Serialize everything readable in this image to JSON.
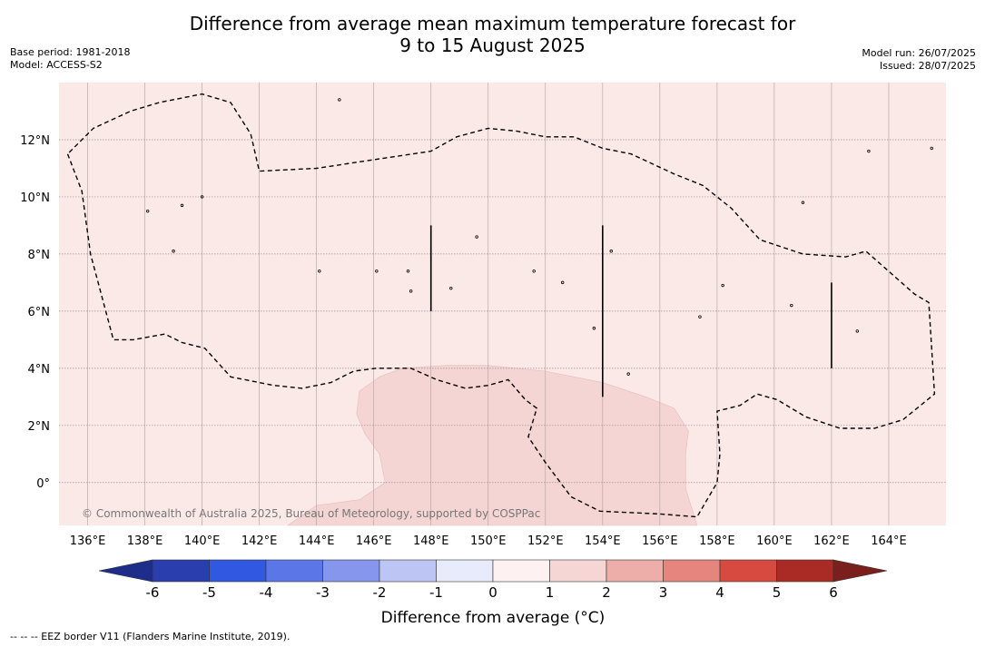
{
  "header": {
    "title_line1": "Difference from average mean maximum temperature forecast for",
    "title_line2": "9 to 15 August 2025",
    "base_period": "Base period: 1981-2018",
    "model": "Model: ACCESS-S2",
    "model_run": "Model run: 26/07/2025",
    "issued": "Issued: 28/07/2025"
  },
  "map": {
    "background_color": "#fbe9e8",
    "lon_range": [
      135,
      166
    ],
    "lat_range": [
      -1.5,
      14
    ],
    "lon_ticks": [
      {
        "value": 136,
        "label": "136°E"
      },
      {
        "value": 138,
        "label": "138°E"
      },
      {
        "value": 140,
        "label": "140°E"
      },
      {
        "value": 142,
        "label": "142°E"
      },
      {
        "value": 144,
        "label": "144°E"
      },
      {
        "value": 146,
        "label": "146°E"
      },
      {
        "value": 148,
        "label": "148°E"
      },
      {
        "value": 150,
        "label": "150°E"
      },
      {
        "value": 152,
        "label": "152°E"
      },
      {
        "value": 154,
        "label": "154°E"
      },
      {
        "value": 156,
        "label": "156°E"
      },
      {
        "value": 158,
        "label": "158°E"
      },
      {
        "value": 160,
        "label": "160°E"
      },
      {
        "value": 162,
        "label": "162°E"
      },
      {
        "value": 164,
        "label": "164°E"
      }
    ],
    "lat_ticks": [
      {
        "value": 12,
        "label": "12°N"
      },
      {
        "value": 10,
        "label": "10°N"
      },
      {
        "value": 8,
        "label": "8°N"
      },
      {
        "value": 6,
        "label": "6°N"
      },
      {
        "value": 4,
        "label": "4°N"
      },
      {
        "value": 2,
        "label": "2°N"
      },
      {
        "value": 0,
        "label": "0°"
      }
    ],
    "anomaly_region_1_to_2": {
      "color": "#f4d5d3",
      "lonlat": [
        [
          146.2,
          3.7
        ],
        [
          147.0,
          4.0
        ],
        [
          148.5,
          4.1
        ],
        [
          150.0,
          4.1
        ],
        [
          152.0,
          3.9
        ],
        [
          154.0,
          3.5
        ],
        [
          155.5,
          3.0
        ],
        [
          156.5,
          2.6
        ],
        [
          157.0,
          1.8
        ],
        [
          156.9,
          1.0
        ],
        [
          156.9,
          -0.2
        ],
        [
          157.3,
          -1.5
        ],
        [
          143.0,
          -1.5
        ],
        [
          144.0,
          -0.8
        ],
        [
          145.5,
          -0.6
        ],
        [
          146.4,
          0.0
        ],
        [
          146.2,
          1.0
        ],
        [
          145.7,
          1.7
        ],
        [
          145.4,
          2.4
        ],
        [
          145.5,
          3.2
        ]
      ]
    },
    "eez_border": [
      [
        [
          135.3,
          11.5
        ],
        [
          135.8,
          10.2
        ],
        [
          136.1,
          8.0
        ],
        [
          136.9,
          5.0
        ],
        [
          137.6,
          5.0
        ],
        [
          138.7,
          5.2
        ],
        [
          139.3,
          4.9
        ],
        [
          140.1,
          4.7
        ],
        [
          141.0,
          3.7
        ],
        [
          142.5,
          3.4
        ],
        [
          143.5,
          3.3
        ],
        [
          144.5,
          3.5
        ],
        [
          145.3,
          3.9
        ],
        [
          146.1,
          4.0
        ],
        [
          147.3,
          4.0
        ],
        [
          148.2,
          3.6
        ],
        [
          149.2,
          3.3
        ],
        [
          150.0,
          3.4
        ],
        [
          150.7,
          3.6
        ],
        [
          151.3,
          2.9
        ],
        [
          151.7,
          2.6
        ],
        [
          151.4,
          1.6
        ],
        [
          152.0,
          0.7
        ],
        [
          152.9,
          -0.5
        ],
        [
          153.9,
          -1.0
        ],
        [
          156.0,
          -1.1
        ],
        [
          157.3,
          -1.2
        ],
        [
          158.0,
          0.0
        ],
        [
          158.1,
          1.0
        ],
        [
          158.0,
          2.5
        ],
        [
          158.8,
          2.7
        ],
        [
          159.4,
          3.1
        ],
        [
          160.1,
          2.9
        ],
        [
          161.1,
          2.3
        ],
        [
          162.3,
          1.9
        ],
        [
          163.5,
          1.9
        ],
        [
          164.5,
          2.2
        ],
        [
          165.6,
          3.1
        ],
        [
          165.4,
          6.3
        ],
        [
          164.9,
          6.6
        ],
        [
          163.2,
          8.1
        ],
        [
          162.5,
          7.9
        ],
        [
          161.0,
          8.0
        ],
        [
          159.5,
          8.5
        ],
        [
          158.5,
          9.6
        ],
        [
          157.5,
          10.4
        ],
        [
          156.5,
          10.8
        ],
        [
          155.0,
          11.5
        ],
        [
          154.0,
          11.7
        ],
        [
          153.0,
          12.1
        ],
        [
          152.0,
          12.1
        ],
        [
          151.0,
          12.3
        ],
        [
          150.0,
          12.4
        ],
        [
          148.9,
          12.1
        ],
        [
          148.0,
          11.6
        ],
        [
          146.0,
          11.3
        ],
        [
          144.0,
          11.0
        ],
        [
          142.0,
          10.9
        ],
        [
          141.7,
          12.2
        ],
        [
          141.0,
          13.3
        ],
        [
          140.0,
          13.6
        ],
        [
          138.5,
          13.3
        ],
        [
          137.5,
          13.0
        ],
        [
          136.2,
          12.4
        ],
        [
          135.3,
          11.5
        ]
      ]
    ],
    "boundary_lines": [
      {
        "lon": 148,
        "lat": [
          6,
          9
        ]
      },
      {
        "lon": 154,
        "lat": [
          3,
          9
        ]
      },
      {
        "lon": 162,
        "lat": [
          4,
          7
        ]
      }
    ],
    "islands": [
      {
        "lon": 144.8,
        "lat": 13.4
      },
      {
        "lon": 138.1,
        "lat": 9.5
      },
      {
        "lon": 139.3,
        "lat": 9.7
      },
      {
        "lon": 140.0,
        "lat": 10.0
      },
      {
        "lon": 139.0,
        "lat": 8.1
      },
      {
        "lon": 144.1,
        "lat": 7.4
      },
      {
        "lon": 146.1,
        "lat": 7.4
      },
      {
        "lon": 147.2,
        "lat": 7.4
      },
      {
        "lon": 149.6,
        "lat": 8.6
      },
      {
        "lon": 151.6,
        "lat": 7.4
      },
      {
        "lon": 152.6,
        "lat": 7.0
      },
      {
        "lon": 154.3,
        "lat": 8.1
      },
      {
        "lon": 158.2,
        "lat": 6.9
      },
      {
        "lon": 157.4,
        "lat": 5.8
      },
      {
        "lon": 160.6,
        "lat": 6.2
      },
      {
        "lon": 162.9,
        "lat": 5.3
      },
      {
        "lon": 161.0,
        "lat": 9.8
      },
      {
        "lon": 163.3,
        "lat": 11.6
      },
      {
        "lon": 165.5,
        "lat": 11.7
      },
      {
        "lon": 153.7,
        "lat": 5.4
      },
      {
        "lon": 154.9,
        "lat": 3.8
      },
      {
        "lon": 147.3,
        "lat": 6.7
      },
      {
        "lon": 148.7,
        "lat": 6.8
      }
    ],
    "copyright": "© Commonwealth of Australia 2025, Bureau of Meteorology, supported by COSPPac"
  },
  "colorbar": {
    "ticks": [
      "-6",
      "-5",
      "-4",
      "-3",
      "-2",
      "-1",
      "0",
      "1",
      "2",
      "3",
      "4",
      "5",
      "6"
    ],
    "colors": [
      "#2a3ead",
      "#3058e0",
      "#5b76e6",
      "#8696ec",
      "#bdc5f5",
      "#e8ebfb",
      "#fdf1f1",
      "#f6d6d4",
      "#edaea9",
      "#e6857e",
      "#d64a3f",
      "#aa2b25"
    ],
    "under_color": "#1e2d8a",
    "over_color": "#7a1f1b",
    "label": "Difference from average (°C)"
  },
  "footnote": "--  --  -- EEZ border V11 (Flanders Marine Institute, 2019)."
}
